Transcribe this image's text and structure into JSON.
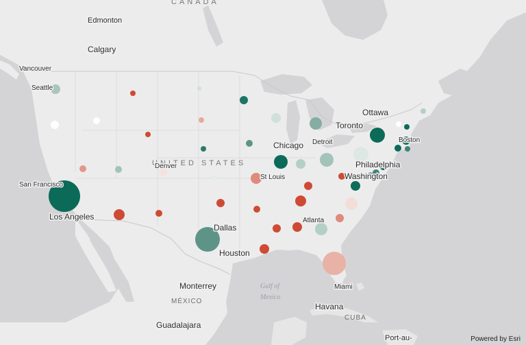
{
  "map": {
    "attribution": "Powered by Esri",
    "colors": {
      "water": "#d4d4d6",
      "land": "#ececec",
      "land_other": "#e6e6e6",
      "border": "#c9c9c9",
      "high": "#0b6b58",
      "low": "#cf4a34"
    },
    "labels": {
      "countries": [
        {
          "id": "canada",
          "text": "CANADA"
        },
        {
          "id": "united-states",
          "text": "UNITED STATES"
        },
        {
          "id": "mexico",
          "text": "MÉXICO"
        },
        {
          "id": "cuba",
          "text": "CUBA"
        }
      ],
      "water": [
        {
          "id": "gulf",
          "line1": "Gulf of",
          "line2": "Mexico"
        }
      ],
      "cities": [
        {
          "id": "edmonton",
          "text": "Edmonton"
        },
        {
          "id": "calgary",
          "text": "Calgary"
        },
        {
          "id": "vancouver",
          "text": "Vancouver"
        },
        {
          "id": "seattle",
          "text": "Seattle"
        },
        {
          "id": "denver",
          "text": "Denver"
        },
        {
          "id": "san-francisco",
          "text": "San Francisco"
        },
        {
          "id": "los-angeles",
          "text": "Los Angeles"
        },
        {
          "id": "dallas",
          "text": "Dallas"
        },
        {
          "id": "houston",
          "text": "Houston"
        },
        {
          "id": "monterrey",
          "text": "Monterrey"
        },
        {
          "id": "guadalajara",
          "text": "Guadalajara"
        },
        {
          "id": "chicago",
          "text": "Chicago"
        },
        {
          "id": "st-louis",
          "text": "St Louis"
        },
        {
          "id": "detroit",
          "text": "Detroit"
        },
        {
          "id": "toronto",
          "text": "Toronto"
        },
        {
          "id": "ottawa",
          "text": "Ottawa"
        },
        {
          "id": "boston",
          "text": "Boston"
        },
        {
          "id": "philadelphia",
          "text": "Philadelphia"
        },
        {
          "id": "washington",
          "text": "Washington"
        },
        {
          "id": "atlanta",
          "text": "Atlanta"
        },
        {
          "id": "miami",
          "text": "Miami"
        },
        {
          "id": "havana",
          "text": "Havana"
        },
        {
          "id": "port-au",
          "text": "Port-au-"
        }
      ]
    },
    "symbols": [
      {
        "id": "los-angeles",
        "size": 10,
        "level": 1.0
      },
      {
        "id": "dallas",
        "size": 7,
        "level": 0.8
      },
      {
        "id": "miami",
        "size": 6.5,
        "level": 0.3
      },
      {
        "id": "detroit",
        "size": 4.5,
        "level": 0.65
      },
      {
        "id": "new-york",
        "size": 4.2,
        "level": 0.55
      },
      {
        "id": "ohio",
        "size": 4.5,
        "level": 0.6
      },
      {
        "id": "toronto-area",
        "size": 4.2,
        "level": 0.7
      },
      {
        "id": "chicago",
        "size": 4.2,
        "level": 0.98
      },
      {
        "id": "atlanta",
        "size": 3.8,
        "level": 0.62
      },
      {
        "id": "seattle",
        "size": 3.2,
        "level": 0.62
      }
    ]
  }
}
